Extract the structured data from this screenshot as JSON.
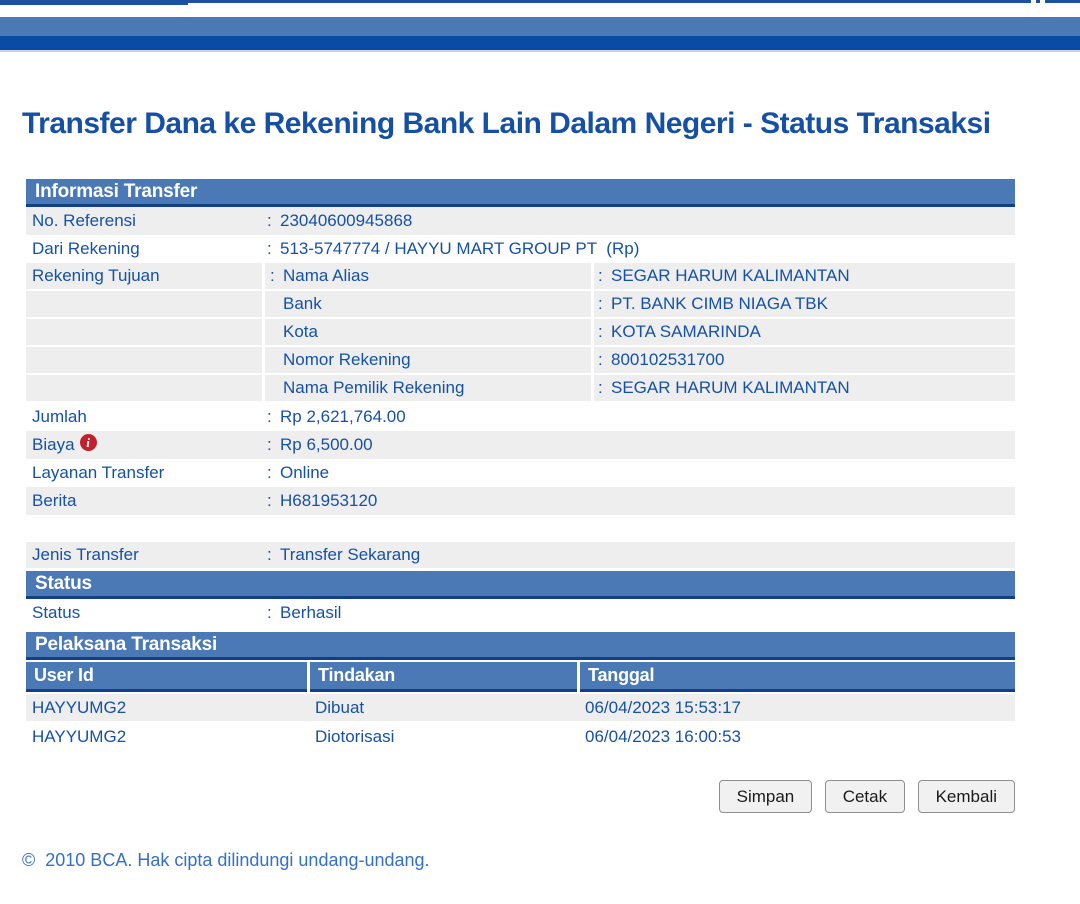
{
  "ui": {
    "colon": ":"
  },
  "page": {
    "title": "Transfer Dana ke Rekening Bank Lain Dalam Negeri - Status Transaksi",
    "footer_copyright": "©  2010 BCA. Hak cipta dilindungi undang-undang."
  },
  "colors": {
    "section_header_blue": "#4a79b5",
    "nav_bar_blue": "#0b4aa5",
    "chrome_line_blue": "#1d4fa2",
    "text_blue": "#1551a8",
    "footer_blue": "#3470c8",
    "row_shade_gray": "#eeeeee",
    "info_icon_red": "#c2202c"
  },
  "icons": {
    "info_icon_glyph": "i"
  },
  "informasi_transfer": {
    "section_title": "Informasi Transfer",
    "no_referensi": {
      "label": "No. Referensi",
      "value": "23040600945868"
    },
    "dari_rekening": {
      "label": "Dari Rekening",
      "value": "513-5747774 / HAYYU MART GROUP PT  (Rp)"
    },
    "rekening_tujuan": {
      "label": "Rekening Tujuan",
      "sub_rows": [
        {
          "label": "Nama Alias",
          "value": "SEGAR HARUM KALIMANTAN"
        },
        {
          "label": "Bank",
          "value": "PT. BANK CIMB NIAGA TBK"
        },
        {
          "label": "Kota",
          "value": "KOTA SAMARINDA"
        },
        {
          "label": "Nomor Rekening",
          "value": "800102531700"
        },
        {
          "label": "Nama Pemilik Rekening",
          "value": "SEGAR HARUM KALIMANTAN"
        }
      ]
    },
    "jumlah": {
      "label": "Jumlah",
      "value": "Rp 2,621,764.00"
    },
    "biaya": {
      "label": "Biaya",
      "value": "Rp 6,500.00"
    },
    "layanan_transfer": {
      "label": "Layanan Transfer",
      "value": "Online"
    },
    "berita": {
      "label": "Berita",
      "value": "H681953120"
    }
  },
  "jenis_transfer": {
    "label": "Jenis Transfer",
    "value": "Transfer Sekarang"
  },
  "status_section": {
    "section_title": "Status",
    "status": {
      "label": "Status",
      "value": "Berhasil"
    }
  },
  "pelaksana_transaksi": {
    "section_title": "Pelaksana Transaksi",
    "columns": {
      "user_id": "User Id",
      "tindakan": "Tindakan",
      "tanggal": "Tanggal"
    },
    "rows": [
      {
        "user_id": "HAYYUMG2",
        "tindakan": "Dibuat",
        "tanggal": "06/04/2023 15:53:17"
      },
      {
        "user_id": "HAYYUMG2",
        "tindakan": "Diotorisasi",
        "tanggal": "06/04/2023 16:00:53"
      }
    ]
  },
  "buttons": {
    "simpan": "Simpan",
    "cetak": "Cetak",
    "kembali": "Kembali"
  }
}
